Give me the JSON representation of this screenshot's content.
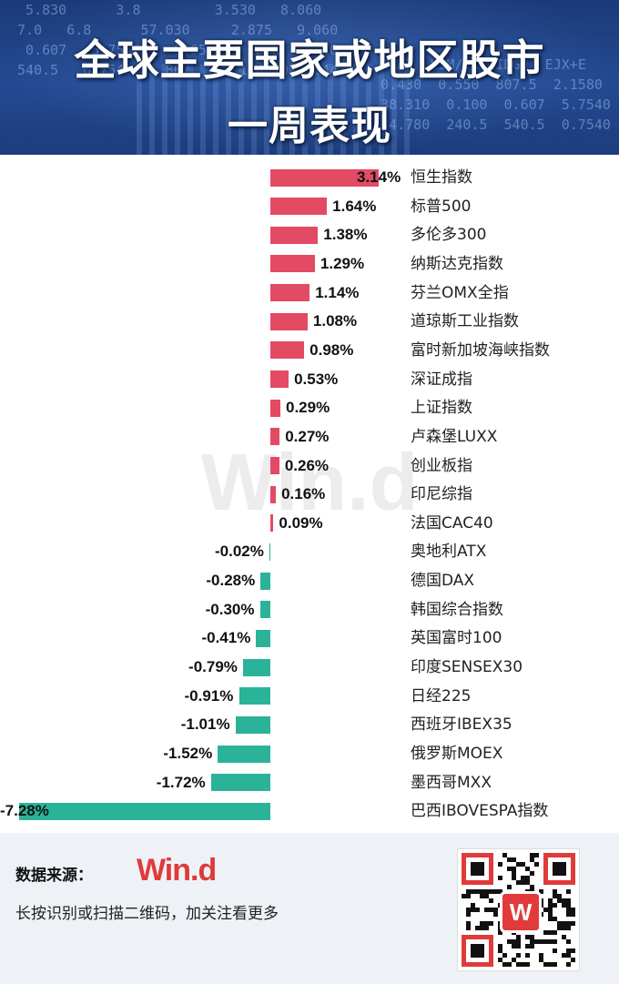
{
  "header": {
    "title_line1": "全球主要国家或地区股市",
    "title_line2": "一周表现"
  },
  "watermark": "Win.d",
  "chart_data": {
    "type": "bar",
    "orientation": "horizontal",
    "title": "全球主要国家或地区股市一周表现",
    "positive_color": "#e34a64",
    "negative_color": "#2bb39a",
    "categories": [
      "恒生指数",
      "标普500",
      "多伦多300",
      "纳斯达克指数",
      "芬兰OMX全指",
      "道琼斯工业指数",
      "富时新加坡海峡指数",
      "深证成指",
      "上证指数",
      "卢森堡LUXX",
      "创业板指",
      "印尼综指",
      "法国CAC40",
      "奥地利ATX",
      "德国DAX",
      "韩国综合指数",
      "英国富时100",
      "印度SENSEX30",
      "日经225",
      "西班牙IBEX35",
      "俄罗斯MOEX",
      "墨西哥MXX",
      "巴西IBOVESPA指数"
    ],
    "values": [
      3.14,
      1.64,
      1.38,
      1.29,
      1.14,
      1.08,
      0.98,
      0.53,
      0.29,
      0.27,
      0.26,
      0.16,
      0.09,
      -0.02,
      -0.28,
      -0.3,
      -0.41,
      -0.79,
      -0.91,
      -1.01,
      -1.52,
      -1.72,
      -7.28
    ],
    "labels": [
      "3.14%",
      "1.64%",
      "1.38%",
      "1.29%",
      "1.14%",
      "1.08%",
      "0.98%",
      "0.53%",
      "0.29%",
      "0.27%",
      "0.26%",
      "0.16%",
      "0.09%",
      "-0.02%",
      "-0.28%",
      "-0.30%",
      "-0.41%",
      "-0.79%",
      "-0.91%",
      "-1.01%",
      "-1.52%",
      "-1.72%",
      "-7.28%"
    ]
  },
  "footer": {
    "source_label": "数据来源：",
    "brand": "Win.d",
    "note": "长按识别或扫描二维码，加关注看更多",
    "qr_logo": "W"
  }
}
